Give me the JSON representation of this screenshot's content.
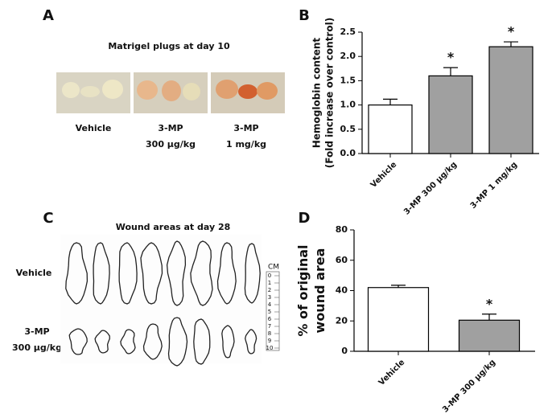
{
  "panel_labels": [
    "A",
    "B",
    "C",
    "D"
  ],
  "panel_a": {
    "title": "Matrigel plugs at day 10",
    "groups": [
      [
        "Vehicle"
      ],
      [
        "3-MP",
        "300 µg/kg"
      ],
      [
        "3-MP",
        "1 mg/kg"
      ]
    ]
  },
  "panel_c": {
    "title": "Wound areas at day 28",
    "rows": [
      [
        "Vehicle"
      ],
      [
        "3-MP",
        "300 µg/kg"
      ]
    ],
    "scale_unit": "CM",
    "scale_ticks": [
      0,
      1,
      2,
      3,
      4,
      5,
      6,
      7,
      8,
      9,
      10
    ]
  },
  "chart_data": [
    {
      "type": "bar",
      "ylabel": [
        "Hemoglobin content",
        "(Fold increase over control)"
      ],
      "categories": [
        "Vehicle",
        "3-MP 300 µg/kg",
        "3-MP 1 mg/kg"
      ],
      "values": [
        1.0,
        1.6,
        2.2
      ],
      "errors": [
        0.12,
        0.17,
        0.1
      ],
      "colors": [
        "#ffffff",
        "#a0a0a0",
        "#a0a0a0"
      ],
      "significance": [
        null,
        "*",
        "*"
      ],
      "ylim": [
        0,
        2.5
      ],
      "yticks": [
        {
          "value": 0,
          "label": "0.0"
        },
        {
          "value": 0.5,
          "label": "0.5"
        },
        {
          "value": 1,
          "label": "1.0"
        },
        {
          "value": 1.5,
          "label": "1.5"
        },
        {
          "value": 2,
          "label": "2.0"
        },
        {
          "value": 2.5,
          "label": "2.5"
        }
      ]
    },
    {
      "type": "bar",
      "ylabel": [
        "% of original",
        "wound area"
      ],
      "categories": [
        "Vehicle",
        "3-MP 300 µg/kg"
      ],
      "values": [
        42,
        20.5
      ],
      "errors": [
        1.5,
        4
      ],
      "colors": [
        "#ffffff",
        "#a0a0a0"
      ],
      "significance": [
        null,
        "*"
      ],
      "ylim": [
        0,
        80
      ],
      "yticks": [
        0,
        20,
        40,
        60,
        80
      ]
    }
  ]
}
